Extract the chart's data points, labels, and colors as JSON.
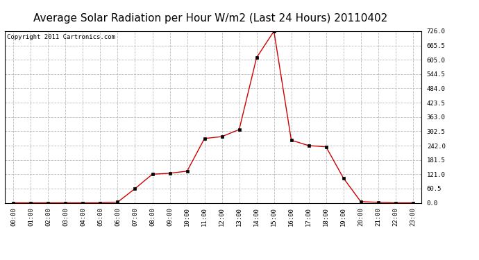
{
  "title": "Average Solar Radiation per Hour W/m2 (Last 24 Hours) 20110402",
  "copyright": "Copyright 2011 Cartronics.com",
  "hours": [
    "00:00",
    "01:00",
    "02:00",
    "03:00",
    "04:00",
    "05:00",
    "06:00",
    "07:00",
    "08:00",
    "09:00",
    "10:00",
    "11:00",
    "12:00",
    "13:00",
    "14:00",
    "15:00",
    "16:00",
    "17:00",
    "18:00",
    "19:00",
    "20:00",
    "21:00",
    "22:00",
    "23:00"
  ],
  "values": [
    0,
    0,
    0,
    0,
    0,
    0,
    3,
    60,
    121,
    125,
    134,
    272,
    280,
    310,
    614,
    726,
    265,
    242,
    237,
    105,
    5,
    2,
    0,
    0
  ],
  "line_color": "#cc0000",
  "marker": "s",
  "marker_size": 2.5,
  "bg_color": "#ffffff",
  "plot_bg_color": "#ffffff",
  "grid_color": "#bbbbbb",
  "ylim": [
    0,
    726
  ],
  "yticks": [
    0.0,
    60.5,
    121.0,
    181.5,
    242.0,
    302.5,
    363.0,
    423.5,
    484.0,
    544.5,
    605.0,
    665.5,
    726.0
  ],
  "title_fontsize": 11,
  "copyright_fontsize": 6.5,
  "tick_fontsize": 6.5,
  "axes_label_color": "#000000"
}
